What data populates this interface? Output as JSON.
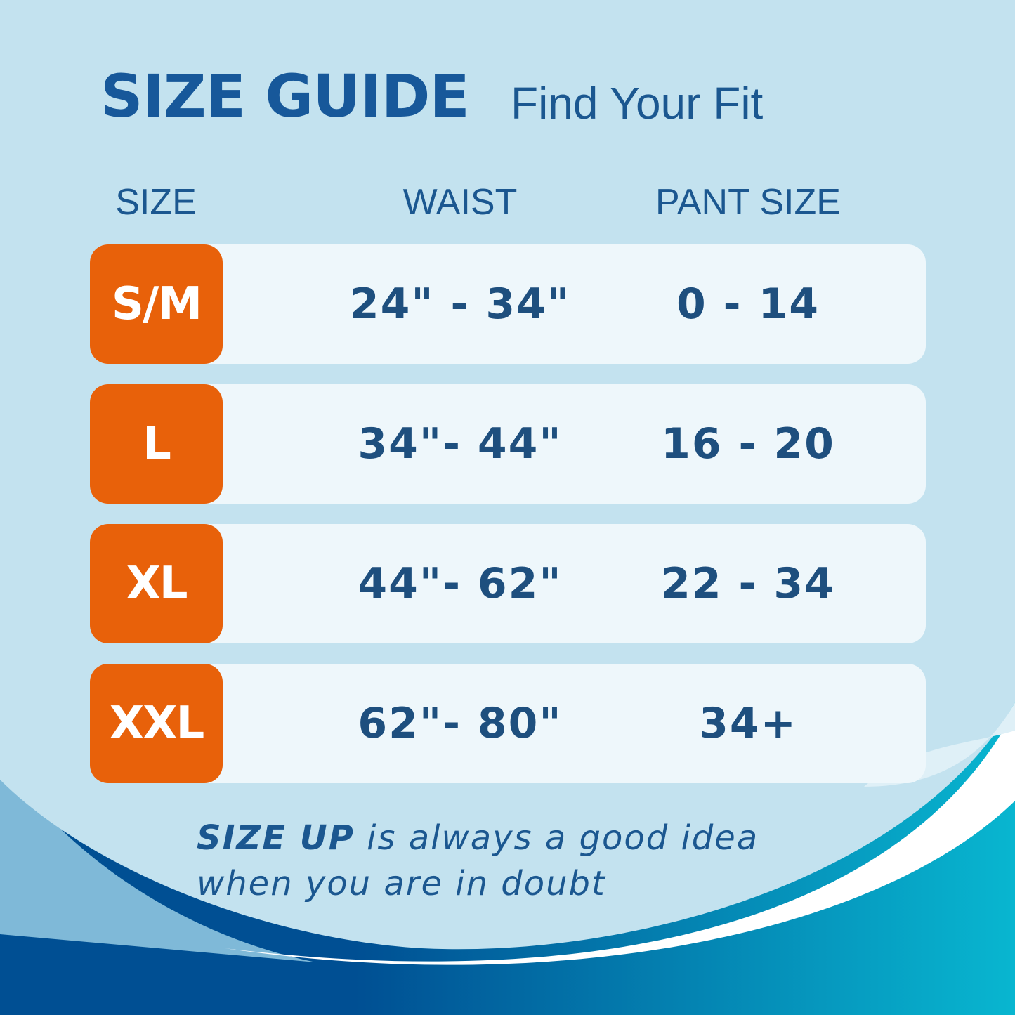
{
  "header": {
    "title": "SIZE GUIDE",
    "subtitle": "Find Your Fit"
  },
  "table": {
    "columns": [
      "SIZE",
      "WAIST",
      "PANT SIZE"
    ],
    "rows": [
      {
        "size": "S/M",
        "waist": "24\" - 34\"",
        "pant": "0 - 14"
      },
      {
        "size": "L",
        "waist": "34\"- 44\"",
        "pant": "16 - 20"
      },
      {
        "size": "XL",
        "waist": "44\"- 62\"",
        "pant": "22 - 34"
      },
      {
        "size": "XXL",
        "waist": "62\"- 80\"",
        "pant": "34+"
      }
    ]
  },
  "note": {
    "emphasis": "SIZE UP",
    "line1_rest": " is always a good idea",
    "line2": "when you are in doubt"
  },
  "colors": {
    "accent": "#e8610a",
    "text": "#1b5790",
    "background": "#c3e2ef"
  }
}
